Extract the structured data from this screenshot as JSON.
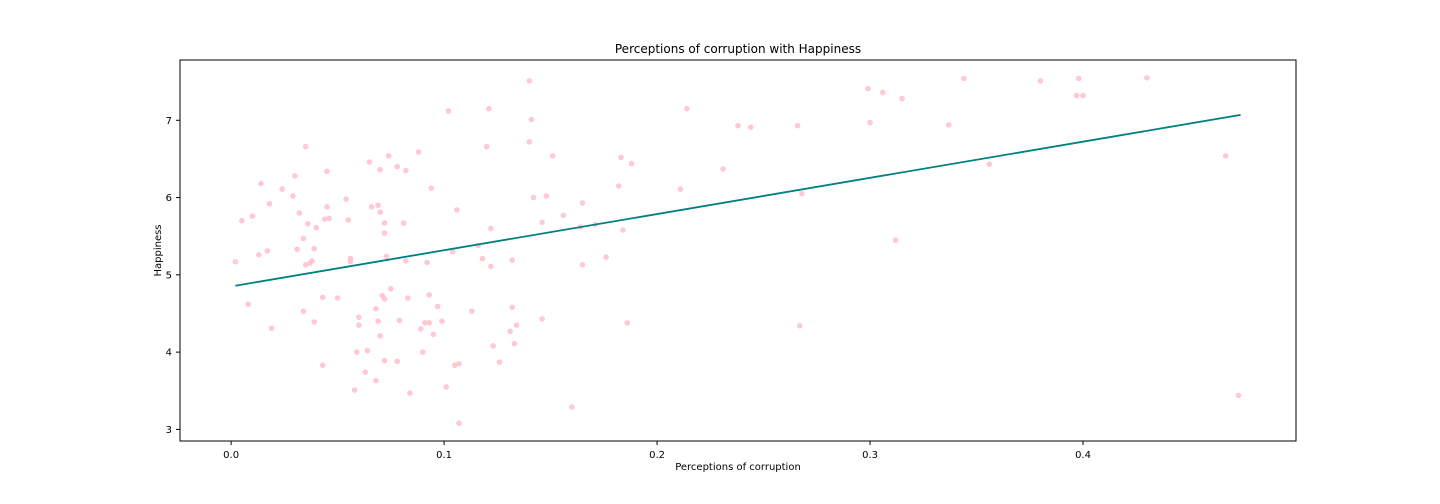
{
  "chart_data": {
    "type": "scatter",
    "title": "Perceptions of corruption with Happiness",
    "xlabel": "Perceptions of corruption",
    "ylabel": "Happiness",
    "xlim": [
      -0.024,
      0.5
    ],
    "ylim": [
      2.85,
      7.78
    ],
    "xticks": [
      0.0,
      0.1,
      0.2,
      0.3,
      0.4
    ],
    "xtick_labels": [
      "0.0",
      "0.1",
      "0.2",
      "0.3",
      "0.4"
    ],
    "yticks": [
      3,
      4,
      5,
      6,
      7
    ],
    "ytick_labels": [
      "3",
      "4",
      "5",
      "6",
      "7"
    ],
    "grid": false,
    "colors": {
      "points": "#ffc0cb",
      "trend": "#008080"
    },
    "trend_line": {
      "x": [
        0.002,
        0.474
      ],
      "y": [
        4.86,
        7.07
      ]
    },
    "points": [
      [
        0.002,
        5.17
      ],
      [
        0.005,
        5.7
      ],
      [
        0.008,
        4.62
      ],
      [
        0.01,
        5.76
      ],
      [
        0.013,
        5.26
      ],
      [
        0.014,
        6.18
      ],
      [
        0.017,
        5.31
      ],
      [
        0.018,
        5.92
      ],
      [
        0.019,
        4.31
      ],
      [
        0.024,
        6.11
      ],
      [
        0.029,
        6.02
      ],
      [
        0.03,
        6.28
      ],
      [
        0.031,
        5.33
      ],
      [
        0.032,
        5.8
      ],
      [
        0.034,
        5.47
      ],
      [
        0.034,
        4.53
      ],
      [
        0.035,
        6.66
      ],
      [
        0.035,
        5.13
      ],
      [
        0.036,
        5.66
      ],
      [
        0.037,
        5.15
      ],
      [
        0.038,
        5.18
      ],
      [
        0.039,
        4.39
      ],
      [
        0.039,
        5.34
      ],
      [
        0.04,
        5.61
      ],
      [
        0.043,
        4.71
      ],
      [
        0.043,
        3.83
      ],
      [
        0.044,
        5.72
      ],
      [
        0.045,
        6.34
      ],
      [
        0.045,
        5.88
      ],
      [
        0.046,
        5.73
      ],
      [
        0.05,
        4.7
      ],
      [
        0.054,
        5.98
      ],
      [
        0.055,
        5.71
      ],
      [
        0.056,
        5.17
      ],
      [
        0.056,
        5.21
      ],
      [
        0.058,
        3.51
      ],
      [
        0.059,
        4.0
      ],
      [
        0.06,
        4.45
      ],
      [
        0.06,
        4.35
      ],
      [
        0.063,
        3.74
      ],
      [
        0.064,
        4.02
      ],
      [
        0.065,
        6.46
      ],
      [
        0.066,
        5.88
      ],
      [
        0.068,
        3.63
      ],
      [
        0.068,
        4.56
      ],
      [
        0.069,
        5.9
      ],
      [
        0.069,
        4.4
      ],
      [
        0.07,
        5.81
      ],
      [
        0.07,
        6.36
      ],
      [
        0.07,
        4.21
      ],
      [
        0.071,
        4.73
      ],
      [
        0.072,
        4.69
      ],
      [
        0.072,
        5.54
      ],
      [
        0.072,
        3.89
      ],
      [
        0.072,
        5.67
      ],
      [
        0.073,
        5.24
      ],
      [
        0.074,
        6.54
      ],
      [
        0.075,
        4.82
      ],
      [
        0.078,
        6.4
      ],
      [
        0.078,
        3.88
      ],
      [
        0.079,
        4.41
      ],
      [
        0.081,
        5.67
      ],
      [
        0.082,
        6.35
      ],
      [
        0.082,
        5.18
      ],
      [
        0.083,
        4.7
      ],
      [
        0.084,
        3.47
      ],
      [
        0.088,
        6.59
      ],
      [
        0.089,
        4.3
      ],
      [
        0.09,
        4.0
      ],
      [
        0.091,
        4.38
      ],
      [
        0.092,
        5.16
      ],
      [
        0.093,
        4.38
      ],
      [
        0.093,
        4.74
      ],
      [
        0.094,
        6.12
      ],
      [
        0.095,
        4.23
      ],
      [
        0.097,
        4.59
      ],
      [
        0.099,
        4.4
      ],
      [
        0.101,
        3.55
      ],
      [
        0.102,
        7.12
      ],
      [
        0.104,
        5.3
      ],
      [
        0.105,
        3.83
      ],
      [
        0.106,
        5.84
      ],
      [
        0.107,
        3.85
      ],
      [
        0.107,
        3.08
      ],
      [
        0.113,
        4.53
      ],
      [
        0.116,
        5.38
      ],
      [
        0.118,
        5.21
      ],
      [
        0.12,
        6.66
      ],
      [
        0.121,
        7.15
      ],
      [
        0.122,
        5.6
      ],
      [
        0.122,
        5.11
      ],
      [
        0.123,
        4.08
      ],
      [
        0.126,
        3.87
      ],
      [
        0.131,
        4.27
      ],
      [
        0.132,
        5.19
      ],
      [
        0.132,
        4.58
      ],
      [
        0.133,
        4.11
      ],
      [
        0.134,
        4.35
      ],
      [
        0.14,
        7.51
      ],
      [
        0.14,
        6.72
      ],
      [
        0.141,
        7.01
      ],
      [
        0.142,
        6.0
      ],
      [
        0.146,
        5.68
      ],
      [
        0.146,
        4.43
      ],
      [
        0.148,
        6.02
      ],
      [
        0.151,
        6.54
      ],
      [
        0.156,
        5.77
      ],
      [
        0.16,
        3.29
      ],
      [
        0.164,
        5.62
      ],
      [
        0.165,
        5.93
      ],
      [
        0.165,
        5.13
      ],
      [
        0.171,
        5.65
      ],
      [
        0.176,
        5.23
      ],
      [
        0.182,
        6.15
      ],
      [
        0.183,
        6.52
      ],
      [
        0.184,
        5.58
      ],
      [
        0.186,
        4.38
      ],
      [
        0.188,
        6.44
      ],
      [
        0.211,
        6.11
      ],
      [
        0.214,
        7.15
      ],
      [
        0.231,
        6.37
      ],
      [
        0.238,
        6.93
      ],
      [
        0.244,
        6.91
      ],
      [
        0.266,
        6.93
      ],
      [
        0.267,
        4.34
      ],
      [
        0.268,
        6.05
      ],
      [
        0.299,
        7.41
      ],
      [
        0.3,
        6.97
      ],
      [
        0.306,
        7.36
      ],
      [
        0.312,
        5.45
      ],
      [
        0.315,
        7.28
      ],
      [
        0.337,
        6.94
      ],
      [
        0.344,
        7.54
      ],
      [
        0.356,
        6.43
      ],
      [
        0.38,
        7.51
      ],
      [
        0.397,
        7.32
      ],
      [
        0.398,
        7.54
      ],
      [
        0.4,
        7.32
      ],
      [
        0.43,
        7.55
      ],
      [
        0.467,
        6.54
      ],
      [
        0.473,
        3.44
      ]
    ]
  }
}
